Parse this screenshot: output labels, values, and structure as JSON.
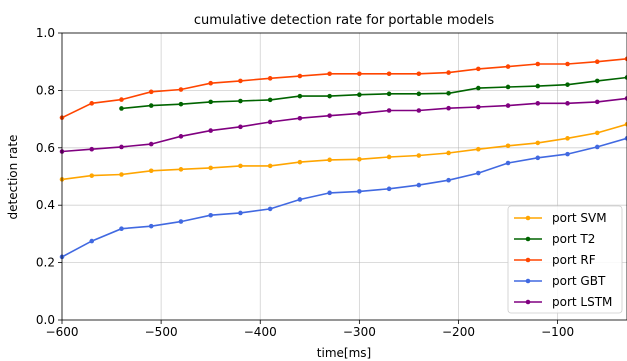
{
  "chart_data": {
    "type": "line",
    "title": "cumulative detection rate for portable models",
    "xlabel": "time[ms]",
    "ylabel": "detection rate",
    "xlim": [
      -600,
      -30
    ],
    "ylim": [
      0.0,
      1.0
    ],
    "xticks": [
      -600,
      -500,
      -400,
      -300,
      -200,
      -100
    ],
    "yticks": [
      0.0,
      0.2,
      0.4,
      0.6,
      0.8,
      1.0
    ],
    "xtick_labels": [
      "−600",
      "−500",
      "−400",
      "−300",
      "−200",
      "−100"
    ],
    "ytick_labels": [
      "0.0",
      "0.2",
      "0.4",
      "0.6",
      "0.8",
      "1.0"
    ],
    "grid": true,
    "legend_position": "lower-right",
    "series": [
      {
        "name": "port SVM",
        "color": "#ffa500",
        "x": [
          -600,
          -570,
          -540,
          -510,
          -480,
          -450,
          -420,
          -390,
          -360,
          -330,
          -300,
          -270,
          -240,
          -210,
          -180,
          -150,
          -120,
          -90,
          -60,
          -30
        ],
        "y": [
          0.49,
          0.503,
          0.507,
          0.52,
          0.525,
          0.53,
          0.537,
          0.537,
          0.55,
          0.558,
          0.56,
          0.568,
          0.573,
          0.582,
          0.595,
          0.607,
          0.617,
          0.633,
          0.652,
          0.682
        ]
      },
      {
        "name": "port T2",
        "color": "#006400",
        "x": [
          -540,
          -510,
          -480,
          -450,
          -420,
          -390,
          -360,
          -330,
          -300,
          -270,
          -240,
          -210,
          -180,
          -150,
          -120,
          -90,
          -60,
          -30
        ],
        "y": [
          0.737,
          0.747,
          0.752,
          0.76,
          0.763,
          0.767,
          0.78,
          0.78,
          0.785,
          0.788,
          0.788,
          0.79,
          0.808,
          0.812,
          0.815,
          0.82,
          0.833,
          0.845
        ]
      },
      {
        "name": "port RF",
        "color": "#ff4500",
        "x": [
          -600,
          -570,
          -540,
          -510,
          -480,
          -450,
          -420,
          -390,
          -360,
          -330,
          -300,
          -270,
          -240,
          -210,
          -180,
          -150,
          -120,
          -90,
          -60,
          -30
        ],
        "y": [
          0.705,
          0.755,
          0.768,
          0.795,
          0.803,
          0.825,
          0.833,
          0.842,
          0.85,
          0.858,
          0.858,
          0.858,
          0.858,
          0.862,
          0.875,
          0.883,
          0.892,
          0.892,
          0.9,
          0.91
        ]
      },
      {
        "name": "port GBT",
        "color": "#4169e1",
        "x": [
          -600,
          -570,
          -540,
          -510,
          -480,
          -450,
          -420,
          -390,
          -360,
          -330,
          -300,
          -270,
          -240,
          -210,
          -180,
          -150,
          -120,
          -90,
          -60,
          -30
        ],
        "y": [
          0.22,
          0.275,
          0.318,
          0.327,
          0.343,
          0.365,
          0.373,
          0.387,
          0.42,
          0.443,
          0.448,
          0.457,
          0.47,
          0.487,
          0.512,
          0.547,
          0.565,
          0.578,
          0.603,
          0.633
        ]
      },
      {
        "name": "port LSTM",
        "color": "#800080",
        "x": [
          -600,
          -570,
          -540,
          -510,
          -480,
          -450,
          -420,
          -390,
          -360,
          -330,
          -300,
          -270,
          -240,
          -210,
          -180,
          -150,
          -120,
          -90,
          -60,
          -30
        ],
        "y": [
          0.587,
          0.595,
          0.603,
          0.613,
          0.64,
          0.66,
          0.673,
          0.69,
          0.703,
          0.712,
          0.72,
          0.73,
          0.73,
          0.738,
          0.742,
          0.747,
          0.755,
          0.755,
          0.76,
          0.772
        ]
      }
    ]
  }
}
